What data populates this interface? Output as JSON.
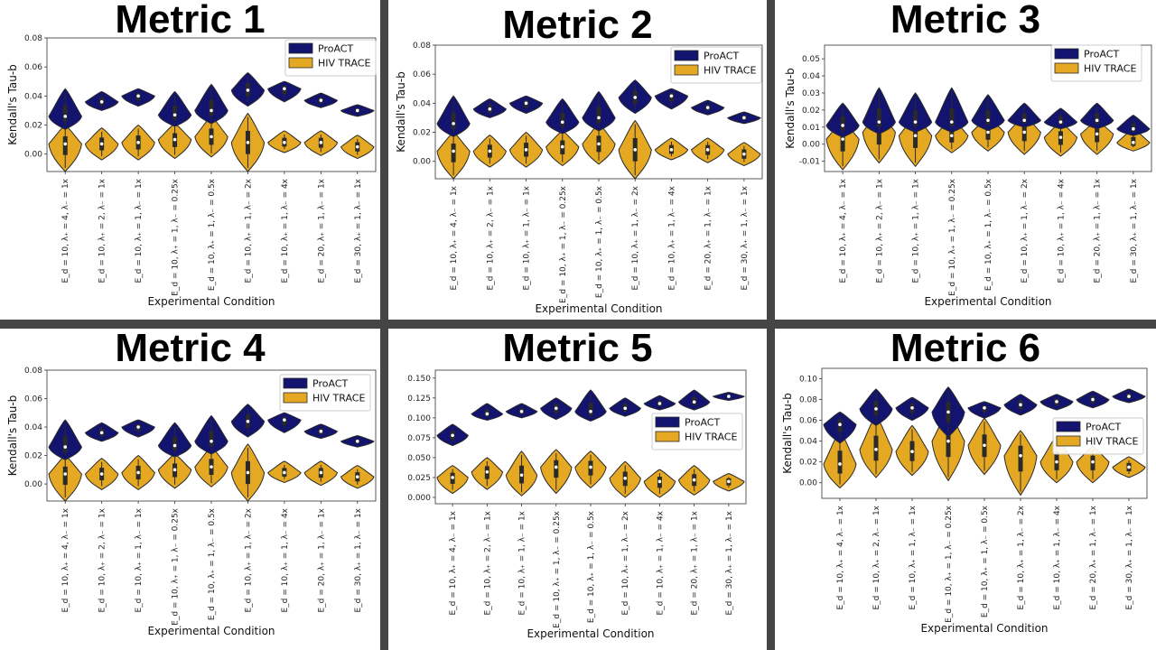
{
  "categories": [
    "E_d = 10, λ₊ = 4, λ₋ = 1x",
    "E_d = 10, λ₊ = 2, λ₋ = 1x",
    "E_d = 10, λ₊ = 1, λ₋ = 1x",
    "E_d = 10, λ₊ = 1, λ₋ = 0.25x",
    "E_d = 10, λ₊ = 1, λ₋ = 0.5x",
    "E_d = 10, λ₊ = 1, λ₋ = 2x",
    "E_d = 10, λ₊ = 1, λ₋ = 4x",
    "E_d = 20, λ₊ = 1, λ₋ = 1x",
    "E_d = 30, λ₊ = 1, λ₋ = 1x"
  ],
  "colors": {
    "proact": "#131370",
    "hiv": "#e5a823",
    "outline": "#2a2a2a",
    "background": "#454545"
  },
  "chart_data": [
    {
      "type": "violin",
      "title": "Metric 1",
      "xlabel": "Experimental Condition",
      "ylabel": "Kendall's Tau-b",
      "ylim": [
        -0.012,
        0.08
      ],
      "yticks": [
        "0.00",
        "0.02",
        "0.04",
        "0.06",
        "0.08"
      ],
      "legend": "top-right",
      "series": [
        {
          "name": "ProACT",
          "median": [
            0.026,
            0.036,
            0.04,
            0.027,
            0.03,
            0.044,
            0.045,
            0.037,
            0.03
          ],
          "min": [
            0.017,
            0.03,
            0.033,
            0.019,
            0.021,
            0.033,
            0.036,
            0.032,
            0.026
          ],
          "max": [
            0.045,
            0.043,
            0.045,
            0.043,
            0.048,
            0.056,
            0.05,
            0.042,
            0.034
          ]
        },
        {
          "name": "HIV TRACE",
          "median": [
            0.007,
            0.007,
            0.008,
            0.01,
            0.012,
            0.008,
            0.008,
            0.008,
            0.005
          ],
          "min": [
            -0.012,
            -0.004,
            -0.004,
            -0.003,
            -0.002,
            -0.012,
            0.001,
            -0.001,
            -0.003
          ],
          "max": [
            0.02,
            0.018,
            0.02,
            0.021,
            0.026,
            0.028,
            0.016,
            0.016,
            0.013
          ]
        }
      ]
    },
    {
      "type": "violin",
      "title": "Metric 2",
      "xlabel": "Experimental Condition",
      "ylabel": "Kendall's Tau-b",
      "ylim": [
        -0.012,
        0.08
      ],
      "yticks": [
        "0.00",
        "0.02",
        "0.04",
        "0.06",
        "0.08"
      ],
      "legend": "top-right",
      "series": [
        {
          "name": "ProACT",
          "median": [
            0.026,
            0.036,
            0.04,
            0.027,
            0.03,
            0.044,
            0.045,
            0.037,
            0.03
          ],
          "min": [
            0.017,
            0.03,
            0.033,
            0.019,
            0.021,
            0.033,
            0.036,
            0.032,
            0.026
          ],
          "max": [
            0.045,
            0.043,
            0.045,
            0.043,
            0.048,
            0.056,
            0.05,
            0.042,
            0.034
          ]
        },
        {
          "name": "HIV TRACE",
          "median": [
            0.007,
            0.007,
            0.008,
            0.01,
            0.012,
            0.008,
            0.008,
            0.008,
            0.005
          ],
          "min": [
            -0.012,
            -0.004,
            -0.004,
            -0.003,
            -0.002,
            -0.012,
            0.001,
            -0.001,
            -0.003
          ],
          "max": [
            0.02,
            0.018,
            0.02,
            0.021,
            0.026,
            0.028,
            0.016,
            0.016,
            0.013
          ]
        }
      ]
    },
    {
      "type": "violin",
      "title": "Metric 3",
      "xlabel": "Experimental Condition",
      "ylabel": "Kendall's Tau-b",
      "ylim": [
        -0.016,
        0.058
      ],
      "yticks": [
        "-0.01",
        "0.00",
        "0.01",
        "0.02",
        "0.03",
        "0.04",
        "0.05"
      ],
      "legend": "top-right",
      "series": [
        {
          "name": "ProACT",
          "median": [
            0.011,
            0.013,
            0.013,
            0.013,
            0.014,
            0.014,
            0.013,
            0.014,
            0.009
          ],
          "min": [
            0.004,
            0.006,
            0.007,
            0.007,
            0.008,
            0.01,
            0.009,
            0.009,
            0.005
          ],
          "max": [
            0.024,
            0.033,
            0.03,
            0.033,
            0.029,
            0.024,
            0.021,
            0.024,
            0.017
          ]
        },
        {
          "name": "HIV TRACE",
          "median": [
            0.003,
            0.007,
            0.005,
            0.005,
            0.007,
            0.007,
            0.004,
            0.006,
            0.001
          ],
          "min": [
            -0.015,
            -0.011,
            -0.013,
            -0.005,
            -0.004,
            -0.006,
            -0.007,
            -0.006,
            -0.004
          ],
          "max": [
            0.014,
            0.02,
            0.017,
            0.016,
            0.016,
            0.017,
            0.013,
            0.014,
            0.009
          ]
        }
      ]
    },
    {
      "type": "violin",
      "title": "Metric 4",
      "xlabel": "Experimental Condition",
      "ylabel": "Kendall's Tau-b",
      "ylim": [
        -0.012,
        0.08
      ],
      "yticks": [
        "0.00",
        "0.02",
        "0.04",
        "0.06",
        "0.08"
      ],
      "legend": "top-right",
      "series": [
        {
          "name": "ProACT",
          "median": [
            0.026,
            0.036,
            0.04,
            0.027,
            0.03,
            0.044,
            0.045,
            0.037,
            0.03
          ],
          "min": [
            0.017,
            0.03,
            0.033,
            0.019,
            0.021,
            0.033,
            0.036,
            0.032,
            0.026
          ],
          "max": [
            0.045,
            0.043,
            0.045,
            0.043,
            0.048,
            0.056,
            0.05,
            0.042,
            0.034
          ]
        },
        {
          "name": "HIV TRACE",
          "median": [
            0.007,
            0.007,
            0.008,
            0.01,
            0.012,
            0.008,
            0.008,
            0.008,
            0.005
          ],
          "min": [
            -0.012,
            -0.004,
            -0.004,
            -0.003,
            -0.002,
            -0.012,
            0.001,
            -0.001,
            -0.003
          ],
          "max": [
            0.02,
            0.018,
            0.02,
            0.021,
            0.026,
            0.028,
            0.016,
            0.016,
            0.013
          ]
        }
      ]
    },
    {
      "type": "violin",
      "title": "Metric 5",
      "xlabel": "Experimental Condition",
      "ylabel": "",
      "ylim": [
        -0.008,
        0.16
      ],
      "yticks": [
        "0.000",
        "0.025",
        "0.050",
        "0.075",
        "0.100",
        "0.125",
        "0.150"
      ],
      "legend": "center-right",
      "series": [
        {
          "name": "ProACT",
          "median": [
            0.078,
            0.105,
            0.108,
            0.112,
            0.108,
            0.112,
            0.118,
            0.12,
            0.127
          ],
          "min": [
            0.065,
            0.097,
            0.1,
            0.098,
            0.096,
            0.102,
            0.11,
            0.11,
            0.122
          ],
          "max": [
            0.092,
            0.118,
            0.118,
            0.125,
            0.135,
            0.125,
            0.128,
            0.135,
            0.132
          ]
        },
        {
          "name": "HIV TRACE",
          "median": [
            0.025,
            0.032,
            0.028,
            0.038,
            0.038,
            0.024,
            0.02,
            0.022,
            0.02
          ],
          "min": [
            0.005,
            0.01,
            0.002,
            0.005,
            0.012,
            0.0,
            0.0,
            0.003,
            0.008
          ],
          "max": [
            0.04,
            0.05,
            0.058,
            0.06,
            0.058,
            0.045,
            0.035,
            0.04,
            0.03
          ]
        }
      ]
    },
    {
      "type": "violin",
      "title": "Metric 6",
      "xlabel": "Experimental Condition",
      "ylabel": "Kendall's Tau-b",
      "ylim": [
        -0.015,
        0.11
      ],
      "yticks": [
        "0.00",
        "0.02",
        "0.04",
        "0.06",
        "0.08",
        "0.10"
      ],
      "legend": "center-right",
      "series": [
        {
          "name": "ProACT",
          "median": [
            0.056,
            0.071,
            0.072,
            0.068,
            0.072,
            0.075,
            0.078,
            0.08,
            0.083
          ],
          "min": [
            0.038,
            0.055,
            0.06,
            0.044,
            0.062,
            0.065,
            0.07,
            0.072,
            0.077
          ],
          "max": [
            0.068,
            0.09,
            0.082,
            0.092,
            0.078,
            0.085,
            0.085,
            0.088,
            0.09
          ]
        },
        {
          "name": "HIV TRACE",
          "median": [
            0.018,
            0.032,
            0.03,
            0.04,
            0.036,
            0.026,
            0.02,
            0.02,
            0.015
          ],
          "min": [
            -0.005,
            0.005,
            0.007,
            0.002,
            0.008,
            -0.012,
            0.0,
            0.0,
            0.005
          ],
          "max": [
            0.05,
            0.065,
            0.055,
            0.07,
            0.062,
            0.05,
            0.045,
            0.035,
            0.025
          ]
        }
      ]
    }
  ]
}
